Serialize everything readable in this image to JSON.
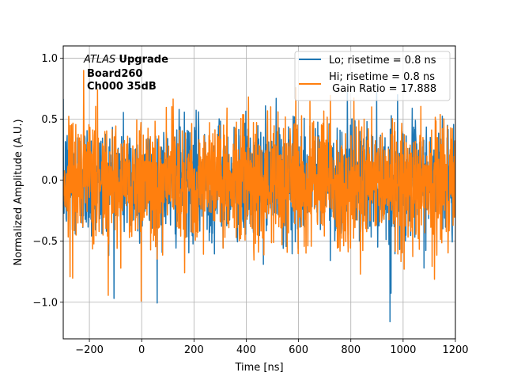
{
  "chart_data": {
    "type": "line",
    "title": "",
    "xlabel": "Time [ns]",
    "ylabel": "Normalized Amplitude (A.U.)",
    "xlim": [
      -300,
      1200
    ],
    "ylim": [
      -1.3,
      1.1
    ],
    "xticks": [
      -200,
      0,
      200,
      400,
      600,
      800,
      1000,
      1200
    ],
    "xtick_labels": [
      "−200",
      "0",
      "200",
      "400",
      "600",
      "800",
      "1000",
      "1200"
    ],
    "yticks": [
      -1.0,
      -0.5,
      0.0,
      0.5,
      1.0
    ],
    "ytick_labels": [
      "−1.0",
      "−0.5",
      "0.0",
      "0.5",
      "1.0"
    ],
    "grid": true,
    "legend_position": "top-right",
    "annotation": {
      "italic": "ATLAS",
      "bold": "Upgrade",
      "line2": "Board260",
      "line3": "Ch000 35dB"
    },
    "series": [
      {
        "name": "Lo; risetime = 0.8 ns",
        "color": "#1f77b4",
        "x_range": [
          -300,
          1200
        ],
        "num_points": 1500,
        "kind": "noise",
        "approx_min": -1.16,
        "approx_max": 0.92,
        "peak_negative_at": 950
      },
      {
        "name": "Hi; risetime = 0.8 ns\n Gain Ratio = 17.888",
        "color": "#ff7f0e",
        "x_range": [
          -300,
          1200
        ],
        "num_points": 1500,
        "kind": "noise",
        "approx_min": -0.99,
        "approx_max": 0.99,
        "peak_negative_at": -2
      }
    ]
  }
}
